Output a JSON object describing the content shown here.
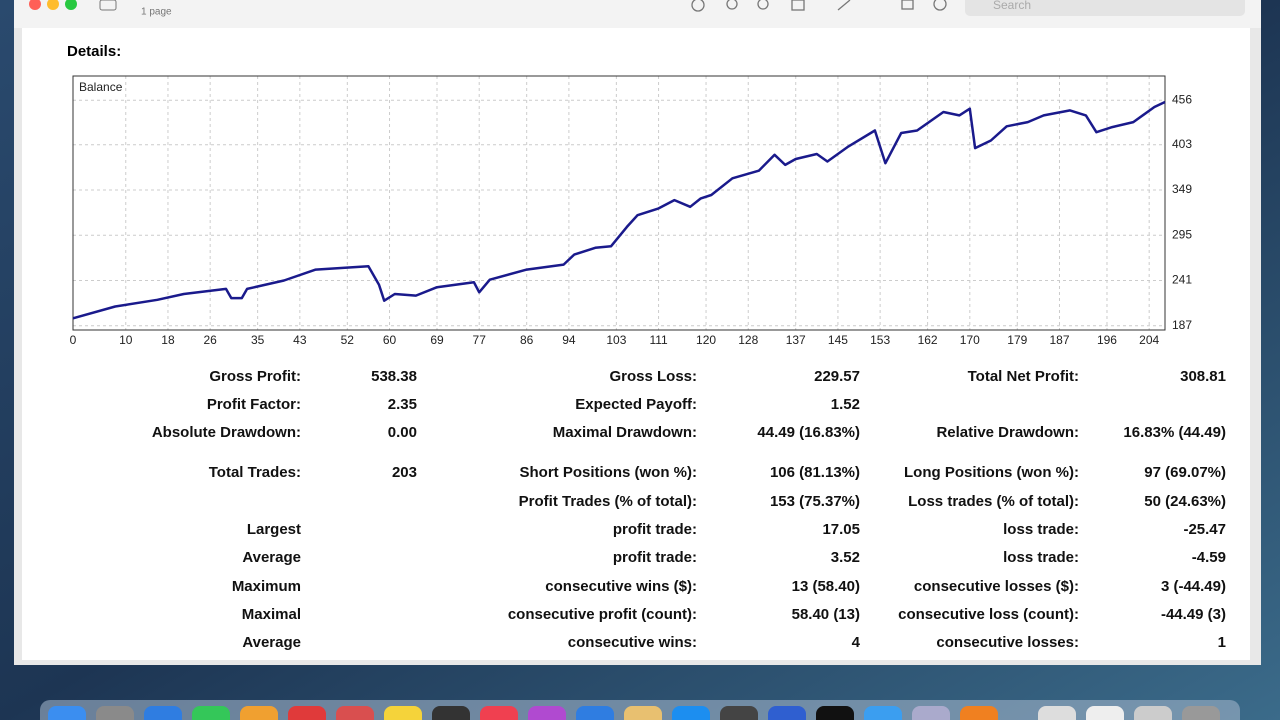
{
  "toolbar": {
    "subtitle": "1 page",
    "search": "Search"
  },
  "details": "Details:",
  "chart_data": {
    "type": "line",
    "series": [
      {
        "name": "Balance",
        "color": "#1a1a8c",
        "x": [
          0,
          8,
          16,
          21,
          29,
          30,
          32,
          33,
          40,
          46,
          56,
          58,
          59,
          61,
          65,
          69,
          76,
          77,
          79,
          86,
          93,
          95,
          99,
          102,
          105,
          107,
          111,
          114,
          117,
          119,
          121,
          125,
          130,
          133,
          135,
          137,
          141,
          143,
          147,
          152,
          154,
          157,
          160,
          165,
          168,
          170,
          171,
          174,
          177,
          181,
          184,
          189,
          192,
          194,
          197,
          201,
          205,
          207
        ],
        "values": [
          196,
          210,
          218,
          225,
          231,
          220,
          220,
          231,
          241,
          254,
          258,
          236,
          217,
          225,
          223,
          233,
          239,
          227,
          242,
          254,
          260,
          272,
          280,
          282,
          305,
          319,
          327,
          337,
          329,
          339,
          343,
          363,
          372,
          391,
          379,
          386,
          392,
          383,
          401,
          420,
          381,
          417,
          420,
          442,
          438,
          446,
          399,
          408,
          425,
          430,
          438,
          444,
          438,
          418,
          424,
          430,
          448,
          454
        ]
      }
    ],
    "xlim": [
      0,
      207
    ],
    "ylim": [
      182,
      485
    ],
    "xticks": [
      0,
      10,
      18,
      26,
      35,
      43,
      52,
      60,
      69,
      77,
      86,
      94,
      103,
      111,
      120,
      128,
      137,
      145,
      153,
      162,
      170,
      179,
      187,
      196,
      204
    ],
    "yticks": [
      187,
      241,
      295,
      349,
      403,
      456
    ],
    "grid": true
  },
  "table": {
    "rows": [
      [
        {
          "label": "Gross Profit:",
          "value": "538.38"
        },
        {
          "label": "Gross Loss:",
          "value": "229.57"
        },
        {
          "label": "Total Net Profit:",
          "value": "308.81"
        }
      ],
      [
        {
          "label": "Profit Factor:",
          "value": "2.35"
        },
        {
          "label": "Expected Payoff:",
          "value": "1.52"
        }
      ],
      [
        {
          "label": "Absolute Drawdown:",
          "value": "0.00"
        },
        {
          "label": "Maximal Drawdown:",
          "value": "44.49 (16.83%)"
        },
        {
          "label": "Relative Drawdown:",
          "value": "16.83% (44.49)"
        }
      ],
      [
        {
          "label": "Total Trades:",
          "value": "203"
        },
        {
          "label": "Short Positions (won %):",
          "value": "106 (81.13%)"
        },
        {
          "label": "Long Positions (won %):",
          "value": "97 (69.07%)"
        }
      ],
      [
        null,
        {
          "label": "Profit Trades (% of total):",
          "value": "153 (75.37%)"
        },
        {
          "label": "Loss trades (% of total):",
          "value": "50 (24.63%)"
        }
      ],
      [
        {
          "label": "Largest"
        },
        {
          "label": "profit trade:",
          "value": "17.05"
        },
        {
          "label": "loss trade:",
          "value": "-25.47"
        }
      ],
      [
        {
          "label": "Average"
        },
        {
          "label": "profit trade:",
          "value": "3.52"
        },
        {
          "label": "loss trade:",
          "value": "-4.59"
        }
      ],
      [
        {
          "label": "Maximum"
        },
        {
          "label": "consecutive wins ($):",
          "value": "13 (58.40)"
        },
        {
          "label": "consecutive losses ($):",
          "value": "3 (-44.49)"
        }
      ],
      [
        {
          "label": "Maximal"
        },
        {
          "label": "consecutive profit (count):",
          "value": "58.40 (13)"
        },
        {
          "label": "consecutive loss (count):",
          "value": "-44.49 (3)"
        }
      ],
      [
        {
          "label": "Average"
        },
        {
          "label": "consecutive wins:",
          "value": "4"
        },
        {
          "label": "consecutive losses:",
          "value": "1"
        }
      ]
    ]
  }
}
